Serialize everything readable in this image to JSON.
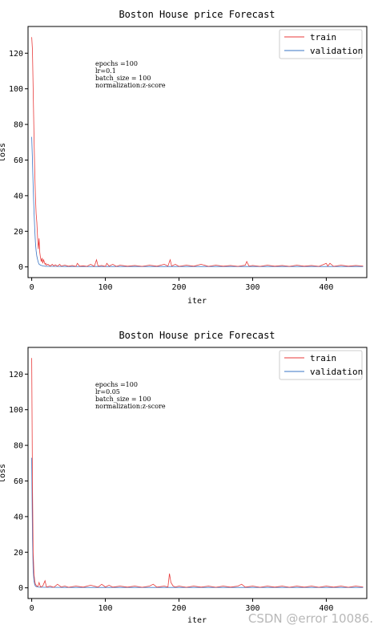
{
  "chart_data": [
    {
      "type": "line",
      "title": "Boston House price Forecast",
      "xlabel": "iter",
      "ylabel": "loss",
      "xlim": [
        -5,
        455
      ],
      "ylim": [
        -6,
        135
      ],
      "xticks": [
        0,
        100,
        200,
        300,
        400
      ],
      "yticks": [
        0,
        20,
        40,
        60,
        80,
        100,
        120
      ],
      "legend": "upper-right",
      "annotation": [
        "epochs =100",
        "lr=0.1",
        "batch_size = 100",
        "normalization:z-score"
      ],
      "series": [
        {
          "name": "train",
          "color": "#e83a3a",
          "x": [
            0,
            1,
            2,
            3,
            4,
            5,
            6,
            7,
            8,
            9,
            10,
            11,
            12,
            13,
            14,
            15,
            16,
            17,
            18,
            19,
            20,
            22,
            25,
            28,
            30,
            32,
            35,
            38,
            40,
            45,
            50,
            55,
            60,
            62,
            65,
            70,
            75,
            80,
            85,
            88,
            90,
            95,
            100,
            102,
            105,
            110,
            115,
            120,
            130,
            140,
            150,
            160,
            170,
            180,
            185,
            188,
            190,
            195,
            200,
            210,
            220,
            230,
            240,
            250,
            260,
            270,
            280,
            290,
            292,
            295,
            300,
            310,
            320,
            330,
            340,
            350,
            360,
            370,
            380,
            390,
            400,
            402,
            405,
            410,
            420,
            430,
            440,
            450
          ],
          "values": [
            129,
            122,
            100,
            75,
            55,
            40,
            30,
            25,
            16,
            10,
            16,
            8,
            5,
            3,
            5,
            2,
            4,
            3,
            1.5,
            2,
            1,
            1.5,
            0.5,
            1.5,
            0.5,
            1.2,
            0.4,
            1.5,
            0.5,
            1,
            0.4,
            0.8,
            0.3,
            2,
            0.4,
            0.6,
            0.3,
            1.5,
            0.3,
            4,
            0.5,
            0.8,
            0.3,
            2,
            0.5,
            1.5,
            0.3,
            1,
            0.4,
            0.8,
            0.3,
            1,
            0.4,
            1.5,
            0.5,
            4,
            0.5,
            1.5,
            0.3,
            1,
            0.4,
            1.5,
            0.3,
            1,
            0.4,
            0.8,
            0.3,
            1,
            3,
            0.5,
            0.8,
            0.3,
            1,
            0.4,
            0.8,
            0.3,
            1,
            0.4,
            0.8,
            0.3,
            2,
            0.5,
            2,
            0.3,
            1,
            0.4,
            0.8,
            0.5
          ]
        },
        {
          "name": "validation",
          "color": "#3a74c4",
          "x": [
            0,
            1,
            2,
            3,
            4,
            5,
            6,
            7,
            8,
            9,
            10,
            12,
            14,
            16,
            18,
            20,
            30,
            50,
            100,
            200,
            300,
            400,
            450
          ],
          "values": [
            73,
            60,
            45,
            32,
            22,
            14,
            9,
            6,
            4,
            2.5,
            1.5,
            1,
            0.7,
            0.5,
            0.4,
            0.3,
            0.3,
            0.2,
            0.2,
            0.2,
            0.2,
            0.2,
            0.2
          ]
        }
      ]
    },
    {
      "type": "line",
      "title": "Boston House price Forecast",
      "xlabel": "iter",
      "ylabel": "loss",
      "xlim": [
        -5,
        455
      ],
      "ylim": [
        -6,
        135
      ],
      "xticks": [
        0,
        100,
        200,
        300,
        400
      ],
      "yticks": [
        0,
        20,
        40,
        60,
        80,
        100,
        120
      ],
      "legend": "upper-right",
      "annotation": [
        "epochs =100",
        "lr=0.05",
        "batch_size = 100",
        "normalization:z-score"
      ],
      "series": [
        {
          "name": "train",
          "color": "#e83a3a",
          "x": [
            0,
            1,
            2,
            3,
            4,
            5,
            6,
            7,
            8,
            9,
            10,
            12,
            15,
            18,
            20,
            25,
            30,
            35,
            40,
            45,
            50,
            60,
            70,
            80,
            90,
            95,
            100,
            105,
            110,
            120,
            130,
            140,
            150,
            160,
            165,
            170,
            180,
            185,
            187,
            189,
            192,
            195,
            200,
            210,
            220,
            230,
            240,
            250,
            260,
            270,
            280,
            285,
            290,
            300,
            310,
            320,
            330,
            340,
            350,
            360,
            370,
            380,
            390,
            400,
            410,
            420,
            430,
            440,
            450
          ],
          "values": [
            129,
            60,
            20,
            8,
            4,
            2,
            1.5,
            1,
            0.8,
            1.5,
            3,
            0.5,
            1,
            4,
            0.5,
            1,
            0.3,
            2,
            0.5,
            1,
            0.3,
            1,
            0.4,
            1.5,
            0.4,
            2,
            0.5,
            1.5,
            0.4,
            1,
            0.4,
            1,
            0.3,
            1,
            2,
            0.4,
            1,
            0.5,
            8,
            3,
            1,
            0.5,
            1,
            0.3,
            1,
            0.4,
            1,
            0.3,
            1,
            0.4,
            1,
            2,
            0.4,
            1,
            0.3,
            1,
            0.4,
            1,
            0.3,
            1,
            0.4,
            1,
            0.3,
            1,
            0.4,
            1,
            0.3,
            1,
            0.5
          ]
        },
        {
          "name": "validation",
          "color": "#3a74c4",
          "x": [
            0,
            1,
            2,
            3,
            4,
            5,
            6,
            8,
            10,
            15,
            20,
            50,
            100,
            200,
            300,
            400,
            450
          ],
          "values": [
            73,
            30,
            10,
            4,
            2,
            1,
            0.7,
            0.5,
            0.4,
            0.3,
            0.3,
            0.2,
            0.2,
            0.2,
            0.2,
            0.2,
            0.2
          ]
        }
      ]
    }
  ],
  "watermark": "CSDN @error 10086."
}
